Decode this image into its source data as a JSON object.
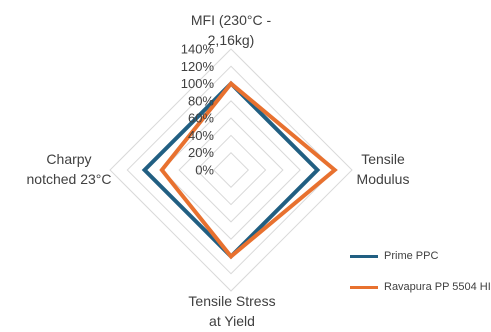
{
  "chart_data": {
    "type": "radar",
    "categories": [
      "MFI (230°C -\n2,16kg)",
      "Tensile\nModulus",
      "Tensile Stress\nat Yield",
      "Charpy\nnotched 23°C"
    ],
    "r_ticks": [
      "0%",
      "20%",
      "40%",
      "60%",
      "80%",
      "100%",
      "120%",
      "140%"
    ],
    "r_range": [
      0,
      140
    ],
    "grid": true,
    "legend_position": "bottom-right",
    "series": [
      {
        "name": "Prime PPC",
        "color": "#215f82",
        "values": [
          100,
          100,
          100,
          100
        ]
      },
      {
        "name": "Ravapura PP 5504 HI",
        "color": "#e8712f",
        "values": [
          100,
          120,
          100,
          80
        ]
      }
    ]
  }
}
